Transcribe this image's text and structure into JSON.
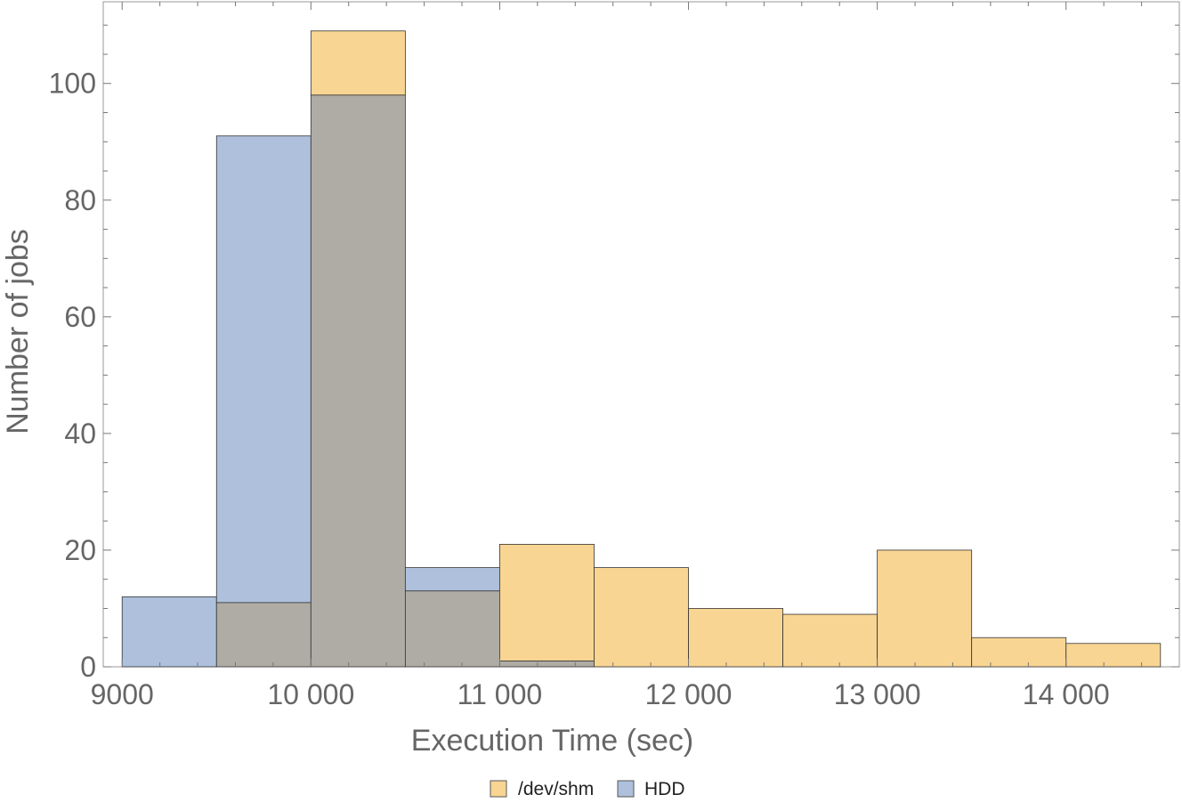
{
  "chart_data": {
    "type": "bar",
    "subtype": "histogram-overlay",
    "xlabel": "Execution Time (sec)",
    "ylabel": "Number of jobs",
    "xlim": [
      8900,
      14600
    ],
    "ylim": [
      0,
      114
    ],
    "x_ticks": [
      9000,
      10000,
      11000,
      12000,
      13000,
      14000
    ],
    "x_tick_labels": [
      "9000",
      "10 000",
      "11 000",
      "12 000",
      "13 000",
      "14 000"
    ],
    "y_ticks": [
      0,
      20,
      40,
      60,
      80,
      100
    ],
    "y_tick_labels": [
      "0",
      "20",
      "40",
      "60",
      "80",
      "100"
    ],
    "bin_width": 500,
    "legend_position": "bottom-center",
    "series": [
      {
        "name": "/dev/shm",
        "color": "#f9d593",
        "bins": [
          9500,
          10000,
          10500,
          11000,
          11500,
          12000,
          12500,
          13000,
          13500,
          14000
        ],
        "values": [
          11,
          109,
          13,
          21,
          17,
          10,
          9,
          20,
          5,
          4
        ]
      },
      {
        "name": "HDD",
        "color": "#aec0dc",
        "bins": [
          9000,
          9500,
          10000,
          10500,
          11000
        ],
        "values": [
          12,
          91,
          98,
          17,
          1
        ]
      }
    ],
    "overlap_color": "#aeaca4"
  }
}
